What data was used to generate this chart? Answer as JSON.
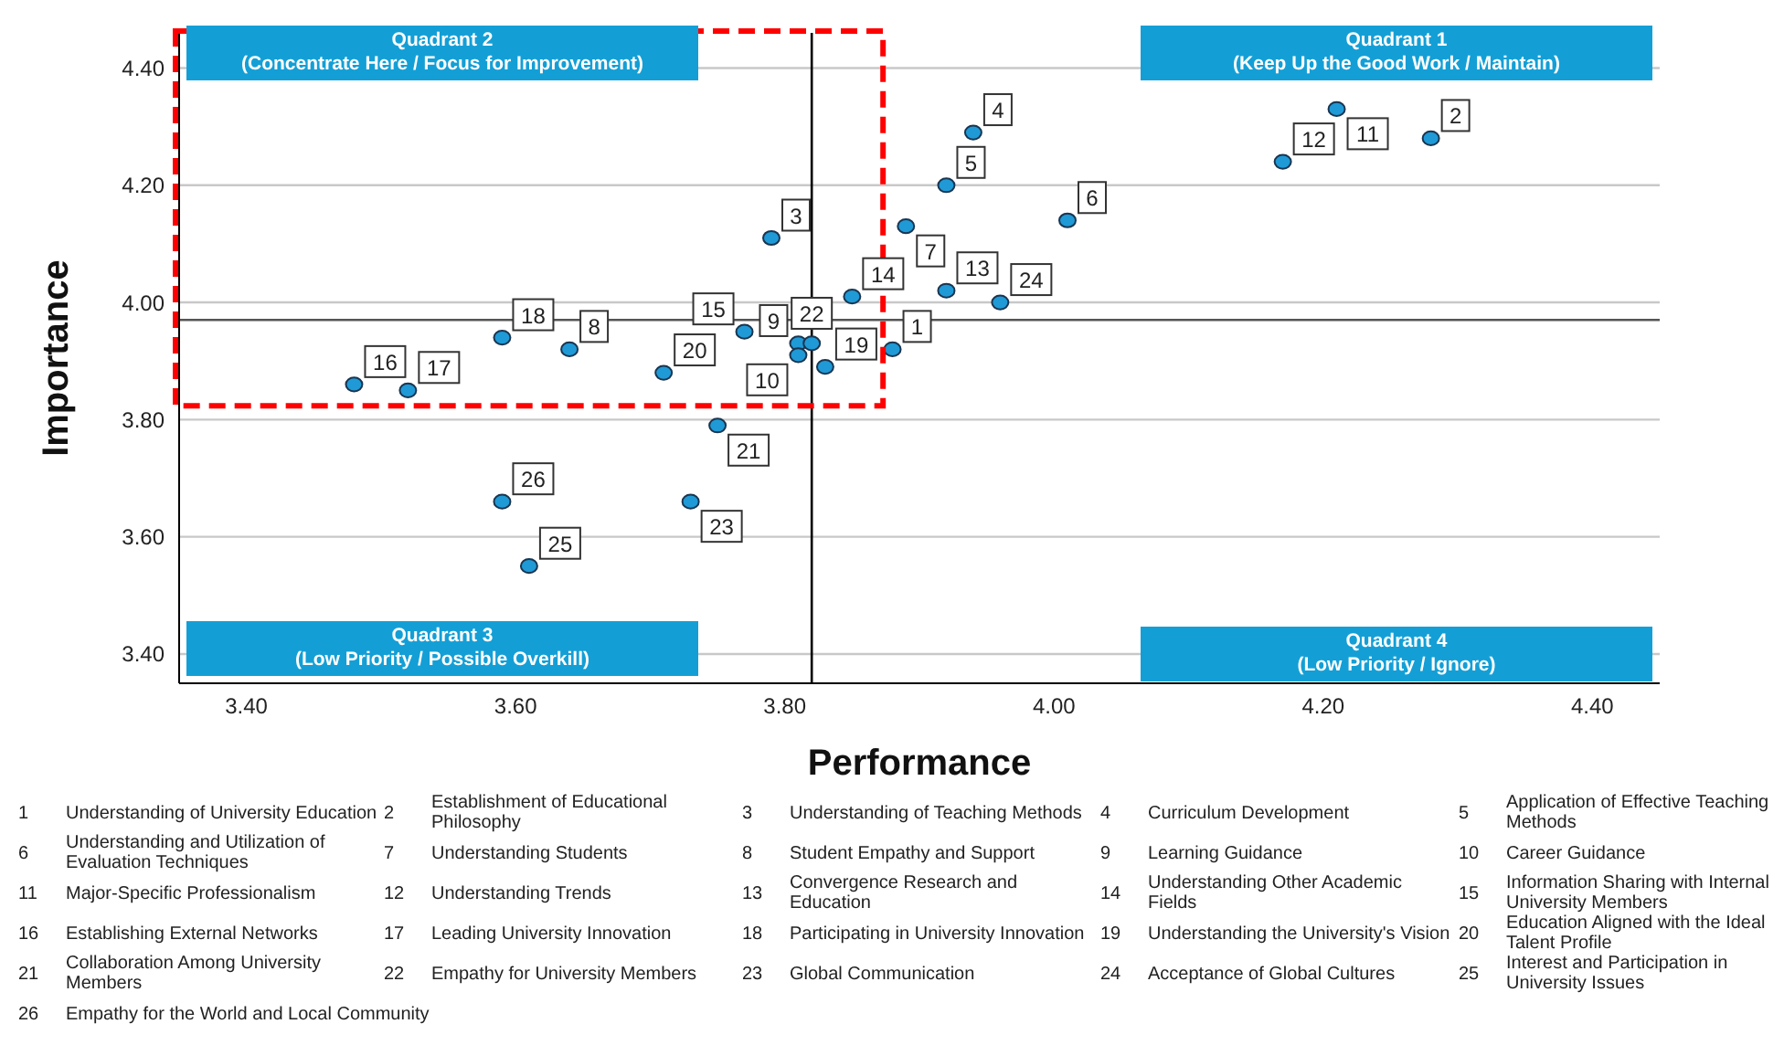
{
  "chart_data": {
    "type": "scatter",
    "xlabel": "Performance",
    "ylabel": "Importance",
    "xlim": [
      3.35,
      4.45
    ],
    "ylim": [
      3.35,
      4.46
    ],
    "xticks": [
      {
        "value": 3.4,
        "label": "3.40"
      },
      {
        "value": 3.6,
        "label": "3.60"
      },
      {
        "value": 3.8,
        "label": "3.80"
      },
      {
        "value": 4.0,
        "label": "4.00"
      },
      {
        "value": 4.2,
        "label": "4.20"
      },
      {
        "value": 4.4,
        "label": "4.40"
      }
    ],
    "yticks": [
      {
        "value": 3.4,
        "label": "3.40"
      },
      {
        "value": 3.6,
        "label": "3.60"
      },
      {
        "value": 3.8,
        "label": "3.80"
      },
      {
        "value": 4.0,
        "label": "4.00"
      },
      {
        "value": 4.2,
        "label": "4.20"
      },
      {
        "value": 4.4,
        "label": "4.40"
      }
    ],
    "grid": "y",
    "marker": "circle",
    "series": [
      {
        "color": "#1f9ad6",
        "x": [
          3.88,
          4.28,
          3.79,
          3.94,
          3.92,
          4.01,
          3.89,
          3.64,
          3.81,
          3.81,
          4.21,
          4.17,
          3.92,
          3.85,
          3.77,
          3.48,
          3.52,
          3.59,
          3.83,
          3.71,
          3.75,
          3.82,
          3.73,
          3.96,
          3.61,
          3.59
        ],
        "values": [
          3.92,
          4.28,
          4.11,
          4.29,
          4.2,
          4.14,
          4.13,
          3.92,
          3.93,
          3.91,
          4.33,
          4.24,
          4.02,
          4.01,
          3.95,
          3.86,
          3.85,
          3.94,
          3.89,
          3.88,
          3.79,
          3.93,
          3.66,
          4.0,
          3.55,
          3.66
        ]
      }
    ],
    "ref_lines": [
      {
        "axis": "x",
        "value": 3.82,
        "color": "#000000"
      },
      {
        "axis": "y",
        "value": 3.97,
        "color": "#555555"
      }
    ],
    "annotations": [
      "Quadrant 2\n(Concentrate Here / Focus for Improvement)",
      "Quadrant 1\n(Keep Up the Good Work / Maintain)",
      "Quadrant 3\n(Low Priority / Possible Overkill)",
      "Quadrant 4\n(Low Priority / Ignore)",
      "1 Understanding of University Education",
      "2 Establishment of Educational Philosophy",
      "3 Understanding of Teaching Methods",
      "4 Curriculum Development",
      "5 Application of Effective Teaching Methods",
      "6 Understanding and Utilization of Evaluation Techniques",
      "7 Understanding Students",
      "8 Student Empathy and Support",
      "9 Learning Guidance",
      "10 Career Guidance",
      "11 Major-Specific Professionalism",
      "12 Understanding Trends",
      "13 Convergence Research and Education",
      "14 Understanding Other Academic Fields",
      "15 Information Sharing with Internal University Members",
      "16 Establishing External Networks",
      "17 Leading University Innovation",
      "18 Participating in University Innovation",
      "19 Understanding the University's Vision",
      "20 Education Aligned with the Ideal Talent Profile",
      "21 Collaboration Among University Members",
      "22 Empathy for University Members",
      "23 Global Communication",
      "24 Acceptance of Global Cultures",
      "25 Interest and Participation in University Issues",
      "26 Empathy for the World and Local Community",
      {
        "text": "1",
        "x": 3.88,
        "y": 3.92
      },
      {
        "text": "2",
        "x": 4.28,
        "y": 4.28
      },
      {
        "text": "3",
        "x": 3.79,
        "y": 4.11
      },
      {
        "text": "4",
        "x": 3.94,
        "y": 4.29
      },
      {
        "text": "5",
        "x": 3.92,
        "y": 4.2
      },
      {
        "text": "6",
        "x": 4.01,
        "y": 4.14
      },
      {
        "text": "7",
        "x": 3.89,
        "y": 4.13
      },
      {
        "text": "8",
        "x": 3.64,
        "y": 3.92
      },
      {
        "text": "9",
        "x": 3.81,
        "y": 3.93
      },
      {
        "text": "10",
        "x": 3.81,
        "y": 3.91
      },
      {
        "text": "11",
        "x": 4.21,
        "y": 4.33
      },
      {
        "text": "12",
        "x": 4.17,
        "y": 4.24
      },
      {
        "text": "13",
        "x": 3.92,
        "y": 4.02
      },
      {
        "text": "14",
        "x": 3.85,
        "y": 4.01
      },
      {
        "text": "15",
        "x": 3.77,
        "y": 3.95
      },
      {
        "text": "16",
        "x": 3.48,
        "y": 3.86
      },
      {
        "text": "17",
        "x": 3.52,
        "y": 3.85
      },
      {
        "text": "18",
        "x": 3.59,
        "y": 3.94
      },
      {
        "text": "19",
        "x": 3.83,
        "y": 3.89
      },
      {
        "text": "20",
        "x": 3.71,
        "y": 3.88
      },
      {
        "text": "21",
        "x": 3.75,
        "y": 3.79
      },
      {
        "text": "22",
        "x": 3.82,
        "y": 3.93
      },
      {
        "text": "23",
        "x": 3.73,
        "y": 3.66
      },
      {
        "text": "24",
        "x": 3.96,
        "y": 4.0
      },
      {
        "text": "25",
        "x": 3.61,
        "y": 3.55
      },
      {
        "text": "26",
        "x": 3.59,
        "y": 3.66
      }
    ]
  }
}
